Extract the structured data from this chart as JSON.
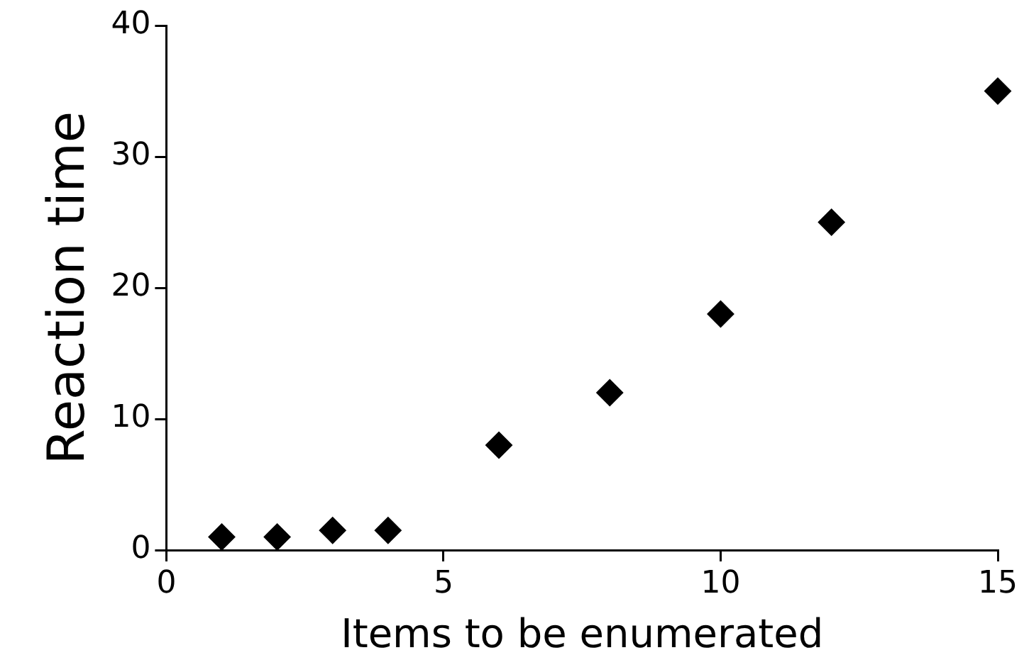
{
  "chart_data": {
    "type": "scatter",
    "xlabel": "Items to be enumerated",
    "ylabel": "Reaction time",
    "x": [
      1,
      2,
      3,
      4,
      6,
      8,
      10,
      12,
      15
    ],
    "series": [
      {
        "color": "#000000",
        "values": [
          1,
          1,
          1.5,
          1.5,
          8,
          12,
          18,
          25,
          35
        ]
      }
    ],
    "xlim": [
      0,
      15
    ],
    "xticks": [
      0,
      5,
      10,
      15
    ],
    "ylim": [
      0,
      40
    ],
    "yticks": [
      0,
      10,
      20,
      30,
      40
    ],
    "grid": false,
    "legend": false,
    "marker": "diamond"
  }
}
